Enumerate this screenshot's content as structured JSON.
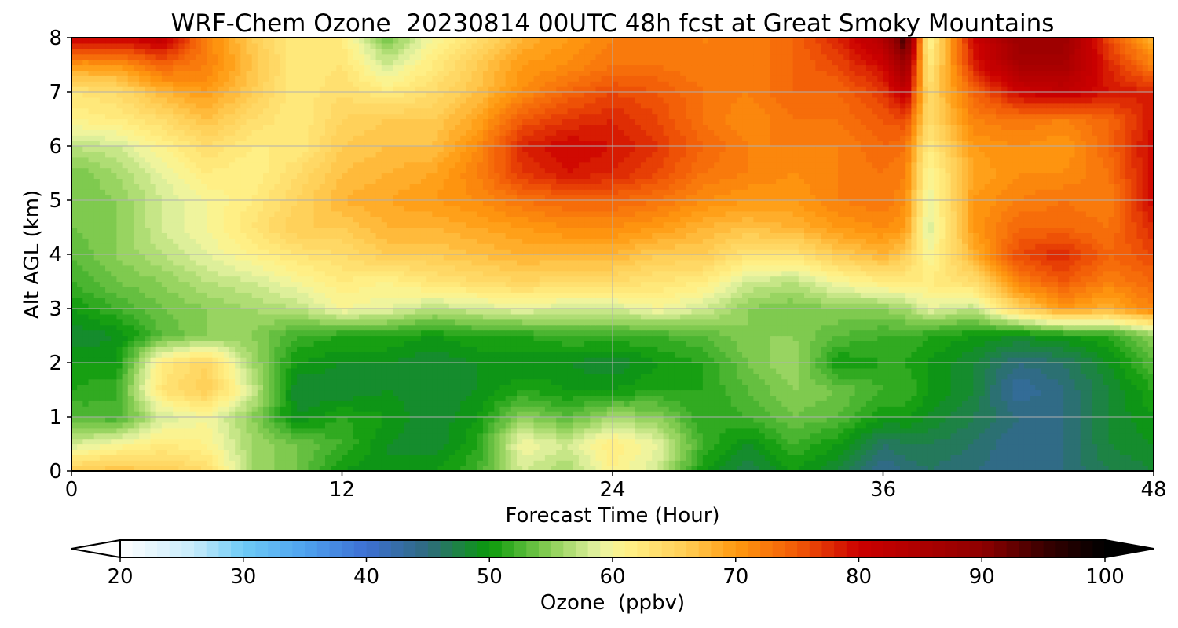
{
  "chart_data": {
    "type": "heatmap",
    "title": "WRF-Chem Ozone  20230814 00UTC 48h fcst at Great Smoky Mountains",
    "xlabel": "Forecast Time (Hour)",
    "ylabel": "Alt AGL (km)",
    "xlim": [
      0,
      48
    ],
    "ylim": [
      0,
      8
    ],
    "x_ticks": [
      "0",
      "12",
      "24",
      "36",
      "48"
    ],
    "y_ticks": [
      "0",
      "1",
      "2",
      "3",
      "4",
      "5",
      "6",
      "7",
      "8"
    ],
    "grid": true,
    "x": [
      0,
      2,
      4,
      6,
      8,
      10,
      12,
      14,
      16,
      18,
      20,
      22,
      24,
      26,
      28,
      30,
      32,
      34,
      36,
      37,
      38,
      40,
      42,
      44,
      46,
      48
    ],
    "y": [
      0,
      0.5,
      1,
      1.5,
      2,
      2.5,
      3,
      3.5,
      4,
      4.5,
      5,
      5.5,
      6,
      6.5,
      7,
      7.5,
      8
    ],
    "values": [
      [
        66,
        67,
        66,
        64,
        56,
        54,
        50,
        49,
        50,
        52,
        58,
        56,
        61,
        58,
        50,
        47,
        50,
        48,
        44,
        45,
        46,
        45,
        44,
        45,
        47,
        48
      ],
      [
        58,
        60,
        62,
        61,
        56,
        54,
        52,
        49,
        48,
        51,
        60,
        58,
        62,
        59,
        52,
        49,
        52,
        50,
        46,
        47,
        47,
        46,
        44,
        45,
        48,
        49
      ],
      [
        53,
        52,
        58,
        60,
        55,
        49,
        51,
        50,
        48,
        50,
        55,
        53,
        56,
        55,
        51,
        52,
        54,
        53,
        50,
        50,
        49,
        47,
        45,
        45,
        48,
        50
      ],
      [
        51,
        52,
        63,
        66,
        58,
        48,
        48,
        49,
        48,
        49,
        51,
        50,
        50,
        51,
        51,
        53,
        55,
        54,
        52,
        52,
        50,
        48,
        43,
        45,
        48,
        51
      ],
      [
        50,
        50,
        62,
        65,
        56,
        50,
        49,
        49,
        48,
        49,
        49,
        49,
        48,
        50,
        51,
        54,
        56,
        50,
        51,
        51,
        50,
        48,
        45,
        46,
        49,
        53
      ],
      [
        48,
        49,
        53,
        55,
        55,
        52,
        51,
        51,
        50,
        51,
        51,
        52,
        52,
        52,
        53,
        55,
        55,
        53,
        52,
        52,
        51,
        50,
        49,
        50,
        51,
        55
      ],
      [
        50,
        52,
        54,
        55,
        56,
        57,
        60,
        59,
        57,
        58,
        59,
        58,
        58,
        60,
        58,
        55,
        54,
        55,
        55,
        56,
        59,
        57,
        65,
        70,
        68,
        72
      ],
      [
        52,
        54,
        55,
        57,
        58,
        60,
        62,
        61,
        63,
        64,
        65,
        64,
        64,
        63,
        62,
        58,
        57,
        60,
        62,
        62,
        62,
        64,
        72,
        75,
        72,
        74
      ],
      [
        53,
        55,
        57,
        59,
        61,
        63,
        64,
        66,
        66,
        67,
        68,
        68,
        68,
        66,
        66,
        63,
        63,
        66,
        68,
        66,
        60,
        68,
        76,
        78,
        74,
        76
      ],
      [
        54,
        55,
        58,
        60,
        63,
        66,
        66,
        68,
        68,
        69,
        70,
        71,
        71,
        70,
        68,
        67,
        68,
        70,
        71,
        70,
        58,
        70,
        74,
        74,
        73,
        78
      ],
      [
        54,
        55,
        58,
        60,
        62,
        65,
        68,
        69,
        70,
        71,
        73,
        74,
        74,
        73,
        71,
        70,
        70,
        72,
        73,
        71,
        59,
        70,
        72,
        73,
        72,
        80
      ],
      [
        54,
        56,
        59,
        62,
        61,
        64,
        67,
        68,
        69,
        72,
        77,
        79,
        78,
        76,
        73,
        72,
        71,
        72,
        73,
        72,
        60,
        69,
        71,
        71,
        73,
        80
      ],
      [
        57,
        58,
        61,
        64,
        62,
        62,
        66,
        67,
        67,
        71,
        78,
        80,
        79,
        77,
        74,
        72,
        72,
        72,
        74,
        73,
        62,
        70,
        71,
        70,
        74,
        80
      ],
      [
        61,
        62,
        64,
        67,
        64,
        62,
        65,
        66,
        66,
        69,
        75,
        77,
        78,
        76,
        73,
        71,
        73,
        73,
        75,
        76,
        64,
        72,
        73,
        72,
        74,
        79
      ],
      [
        63,
        64,
        68,
        70,
        66,
        62,
        64,
        62,
        64,
        67,
        71,
        74,
        76,
        75,
        73,
        72,
        74,
        74,
        77,
        82,
        64,
        74,
        80,
        82,
        79,
        78
      ],
      [
        70,
        70,
        74,
        72,
        67,
        62,
        63,
        58,
        62,
        66,
        70,
        71,
        73,
        73,
        72,
        72,
        74,
        76,
        80,
        88,
        62,
        78,
        86,
        86,
        78,
        72
      ],
      [
        80,
        80,
        82,
        72,
        66,
        62,
        62,
        54,
        60,
        64,
        68,
        70,
        72,
        72,
        72,
        72,
        74,
        78,
        84,
        96,
        60,
        80,
        88,
        88,
        76,
        68
      ]
    ],
    "colorbar": {
      "label": "Ozone  (ppbv)",
      "min": 20,
      "max": 100,
      "step": 1,
      "ticks": [
        "20",
        "30",
        "40",
        "50",
        "60",
        "70",
        "80",
        "90",
        "100"
      ],
      "extend": "both",
      "colors": [
        [
          20,
          "#ffffff"
        ],
        [
          26,
          "#c6ebfb"
        ],
        [
          30,
          "#6ecbf6"
        ],
        [
          35,
          "#4fa3ef"
        ],
        [
          40,
          "#3d6fd3"
        ],
        [
          45,
          "#2f6b7d"
        ],
        [
          50,
          "#0a9a0a"
        ],
        [
          55,
          "#8ccf57"
        ],
        [
          59,
          "#e9f4a3"
        ],
        [
          61,
          "#fff38a"
        ],
        [
          66,
          "#ffcd55"
        ],
        [
          70,
          "#ff9a10"
        ],
        [
          75,
          "#f25a07"
        ],
        [
          80,
          "#cc0000"
        ],
        [
          90,
          "#8f0000"
        ],
        [
          95,
          "#3a0000"
        ],
        [
          100,
          "#000000"
        ]
      ]
    }
  }
}
